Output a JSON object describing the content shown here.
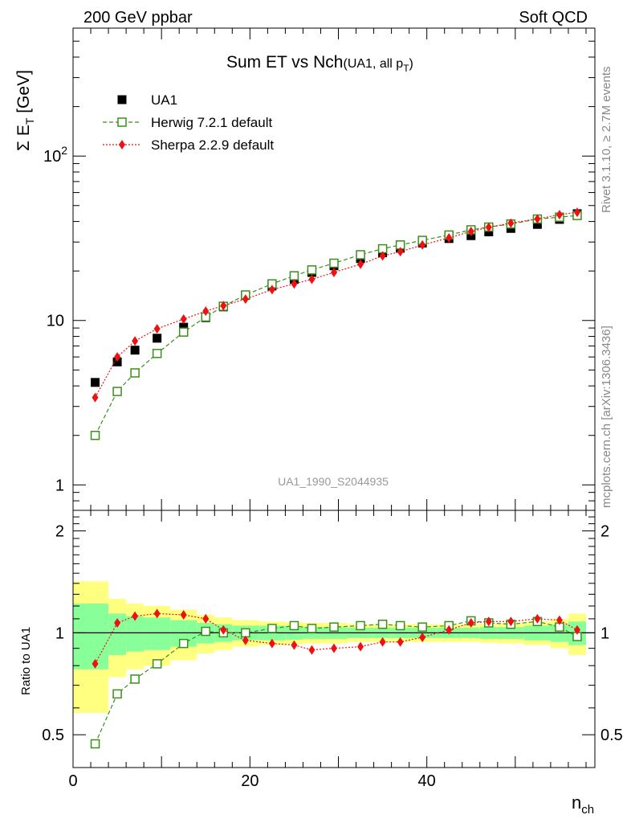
{
  "header": {
    "left": "200 GeV ppbar",
    "right": "Soft QCD"
  },
  "side_text": {
    "rivet": "Rivet 3.1.10, ≥ 2.7M events",
    "mcplots": "mcplots.cern.ch [arXiv:1306.3436]"
  },
  "chart_data": {
    "type": "scatter",
    "title_main": "Sum ET vs Nch",
    "title_sub_pre": "(UA1, all p",
    "title_sub_index": "T",
    "title_sub_post": ")",
    "analysis_id": "UA1_1990_S2044935",
    "ylabel_main": "Σ E",
    "ylabel_index": "T",
    "ylabel_unit": " [GeV]",
    "xlabel_main": "n",
    "xlabel_index": "ch",
    "ratio_ylabel": "Ratio to UA1",
    "xlim": [
      0,
      59
    ],
    "ylim_main": [
      0.7,
      600
    ],
    "yscale_main": "log",
    "ylim_ratio": [
      0.4,
      2.3
    ],
    "yscale_ratio": "log",
    "x_ticks": [
      0,
      20,
      40
    ],
    "y_ticks_main": [
      {
        "value": 1,
        "label": "1"
      },
      {
        "value": 10,
        "label": "10"
      },
      {
        "value": 100,
        "label": "10",
        "exp": "2"
      }
    ],
    "y_ticks_ratio": [
      {
        "value": 0.5,
        "label": "0.5"
      },
      {
        "value": 1,
        "label": "1"
      },
      {
        "value": 2,
        "label": "2"
      }
    ],
    "legend_position": "top-left",
    "x": [
      2.5,
      5,
      7,
      9.5,
      12.5,
      15,
      17,
      19.5,
      22.5,
      25,
      27,
      29.5,
      32.5,
      35,
      37,
      39.5,
      42.5,
      45,
      47,
      49.5,
      52.5,
      55,
      57
    ],
    "bin_edges": [
      0,
      4,
      6,
      8,
      11,
      14,
      16,
      18,
      21,
      24,
      26,
      28,
      31,
      34,
      36,
      38,
      41,
      44,
      46,
      48,
      51,
      54,
      56,
      58
    ],
    "band_inner": [
      0.22,
      0.14,
      0.12,
      0.11,
      0.09,
      0.07,
      0.06,
      0.05,
      0.05,
      0.045,
      0.04,
      0.04,
      0.035,
      0.035,
      0.035,
      0.035,
      0.035,
      0.035,
      0.04,
      0.04,
      0.05,
      0.06,
      0.08
    ],
    "band_outer": [
      0.42,
      0.26,
      0.22,
      0.2,
      0.17,
      0.13,
      0.11,
      0.09,
      0.08,
      0.075,
      0.07,
      0.07,
      0.06,
      0.06,
      0.06,
      0.06,
      0.06,
      0.06,
      0.065,
      0.07,
      0.08,
      0.1,
      0.14
    ],
    "series": [
      {
        "name": "UA1",
        "color": "#000000",
        "marker": "square-filled",
        "line": "none",
        "values": [
          4.2,
          5.6,
          6.6,
          7.8,
          9.1,
          10.4,
          12.1,
          14.2,
          16.2,
          17.8,
          19.6,
          21.5,
          23.8,
          25.8,
          27.5,
          29.6,
          31.5,
          32.8,
          34.6,
          36.3,
          38.4,
          41.2,
          44.6
        ],
        "ratio": [
          1,
          1,
          1,
          1,
          1,
          1,
          1,
          1,
          1,
          1,
          1,
          1,
          1,
          1,
          1,
          1,
          1,
          1,
          1,
          1,
          1,
          1,
          1
        ]
      },
      {
        "name": "Herwig 7.2.1 default",
        "color": "#3a8f1a",
        "marker": "square-open",
        "line": "dashed",
        "values": [
          2.0,
          3.7,
          4.8,
          6.3,
          8.5,
          10.5,
          12.2,
          14.3,
          16.7,
          18.7,
          20.3,
          22.3,
          25.1,
          27.3,
          28.8,
          30.7,
          33.1,
          35.6,
          37.0,
          38.6,
          41.4,
          42.5,
          43.5
        ],
        "ratio": [
          0.47,
          0.66,
          0.73,
          0.81,
          0.93,
          1.01,
          1.0,
          1.0,
          1.03,
          1.05,
          1.03,
          1.04,
          1.05,
          1.06,
          1.05,
          1.04,
          1.05,
          1.085,
          1.07,
          1.06,
          1.08,
          1.04,
          0.975
        ]
      },
      {
        "name": "Sherpa 2.2.9 default",
        "color": "#ee1111",
        "marker": "diamond-filled",
        "line": "dotted",
        "values": [
          3.4,
          6.0,
          7.5,
          8.9,
          10.2,
          11.4,
          12.3,
          13.5,
          15.4,
          16.7,
          17.8,
          19.6,
          22.0,
          24.7,
          26.2,
          28.8,
          31.8,
          34.8,
          36.9,
          39.1,
          41.5,
          44.0,
          45.5
        ],
        "ratio": [
          0.81,
          1.07,
          1.12,
          1.14,
          1.13,
          1.1,
          1.02,
          0.95,
          0.93,
          0.92,
          0.89,
          0.9,
          0.91,
          0.94,
          0.94,
          0.97,
          1.02,
          1.07,
          1.08,
          1.08,
          1.1,
          1.09,
          1.02
        ]
      }
    ]
  }
}
